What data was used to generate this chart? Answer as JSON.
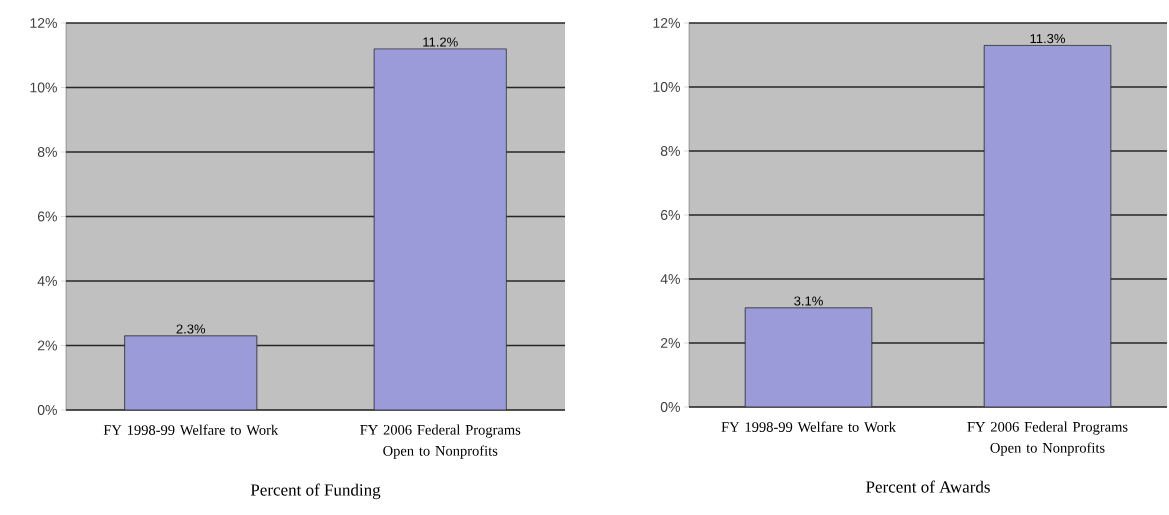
{
  "chart_data": [
    {
      "type": "bar",
      "xlabel": "Percent of Funding",
      "categories": [
        "FY 1998-99 Welfare to Work",
        "FY 2006 Federal Programs Open to Nonprofits"
      ],
      "values": [
        2.3,
        11.2
      ],
      "value_labels": [
        "2.3%",
        "11.2%"
      ],
      "color": "#9b9bd9",
      "ylim": [
        0,
        12
      ],
      "yticks": [
        {
          "value": 0,
          "label": "0%"
        },
        {
          "value": 2,
          "label": "2%"
        },
        {
          "value": 4,
          "label": "4%"
        },
        {
          "value": 6,
          "label": "6%"
        },
        {
          "value": 8,
          "label": "8%"
        },
        {
          "value": 10,
          "label": "10%"
        },
        {
          "value": 12,
          "label": "12%"
        }
      ],
      "grid": "y"
    },
    {
      "type": "bar",
      "xlabel": "Percent of Awards",
      "categories": [
        "FY 1998-99 Welfare to Work",
        "FY 2006 Federal Programs Open to Nonprofits"
      ],
      "values": [
        3.1,
        11.3
      ],
      "value_labels": [
        "3.1%",
        "11.3%"
      ],
      "color": "#9b9bd9",
      "ylim": [
        0,
        12
      ],
      "yticks": [
        {
          "value": 0,
          "label": "0%"
        },
        {
          "value": 2,
          "label": "2%"
        },
        {
          "value": 4,
          "label": "4%"
        },
        {
          "value": 6,
          "label": "6%"
        },
        {
          "value": 8,
          "label": "8%"
        },
        {
          "value": 10,
          "label": "10%"
        },
        {
          "value": 12,
          "label": "12%"
        }
      ],
      "grid": "y"
    }
  ]
}
